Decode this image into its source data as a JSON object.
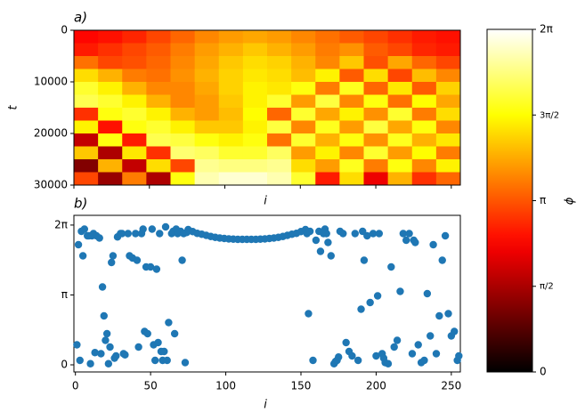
{
  "chart_data": [
    {
      "type": "heatmap",
      "title": "a)",
      "x_label": "i",
      "y_label": "t",
      "colormap": "hot",
      "xlim": [
        0,
        256
      ],
      "ylim": [
        30000,
        0
      ],
      "xticks": [
        0,
        50,
        100,
        150,
        200,
        250
      ],
      "yticks": [
        0,
        10000,
        20000,
        30000
      ],
      "z": [
        [
          2.4,
          2.5,
          2.7,
          3.0,
          3.3,
          3.6,
          3.8,
          3.9,
          3.8,
          3.6,
          3.4,
          3.2,
          3.0,
          2.8,
          2.6,
          2.5
        ],
        [
          2.6,
          2.8,
          3.0,
          3.2,
          3.5,
          3.8,
          4.0,
          4.2,
          4.0,
          3.8,
          3.5,
          3.7,
          3.2,
          3.0,
          2.7,
          2.6
        ],
        [
          3.4,
          3.0,
          3.1,
          3.3,
          3.6,
          3.9,
          4.2,
          4.4,
          4.3,
          4.0,
          3.6,
          4.2,
          3.1,
          3.9,
          3.3,
          3.0
        ],
        [
          4.4,
          4.0,
          3.5,
          3.4,
          3.7,
          4.0,
          4.3,
          4.5,
          4.4,
          4.1,
          4.6,
          3.2,
          4.4,
          3.0,
          4.1,
          3.6
        ],
        [
          5.0,
          4.6,
          4.0,
          3.6,
          3.6,
          3.9,
          4.3,
          4.6,
          4.5,
          4.8,
          3.5,
          4.9,
          3.3,
          4.5,
          3.2,
          4.3
        ],
        [
          5.2,
          5.0,
          4.6,
          4.0,
          3.6,
          3.8,
          4.2,
          4.6,
          5.0,
          3.8,
          5.1,
          3.6,
          4.8,
          3.4,
          4.7,
          3.9
        ],
        [
          2.8,
          4.8,
          5.0,
          4.6,
          4.0,
          3.8,
          4.1,
          4.7,
          3.3,
          5.0,
          3.9,
          4.6,
          3.7,
          5.0,
          3.5,
          4.4
        ],
        [
          4.6,
          2.5,
          4.8,
          5.0,
          4.6,
          4.2,
          4.2,
          4.6,
          5.1,
          3.6,
          4.9,
          3.8,
          5.1,
          3.9,
          4.8,
          3.6
        ],
        [
          1.8,
          4.8,
          2.6,
          5.2,
          5.1,
          4.8,
          4.6,
          4.8,
          3.4,
          5.0,
          4.0,
          4.8,
          3.7,
          4.9,
          4.0,
          4.5
        ],
        [
          4.2,
          1.6,
          4.5,
          2.8,
          5.4,
          5.3,
          5.0,
          5.0,
          5.3,
          3.8,
          4.6,
          3.6,
          5.0,
          3.8,
          4.7,
          3.5
        ],
        [
          1.2,
          4.0,
          1.8,
          4.4,
          3.0,
          5.6,
          5.5,
          5.5,
          5.6,
          4.4,
          3.8,
          4.9,
          3.5,
          4.8,
          3.6,
          4.6
        ],
        [
          3.0,
          1.4,
          3.5,
          1.6,
          4.8,
          5.8,
          6.0,
          6.0,
          5.8,
          5.0,
          2.6,
          4.4,
          2.2,
          4.0,
          2.8,
          3.3
        ]
      ],
      "colorbar": {
        "label": "ϕ",
        "lim": [
          0,
          6.28319
        ],
        "ticks": [
          0,
          {
            "value": 1.5708,
            "label": "π/2"
          },
          {
            "value": 3.14159,
            "label": "π"
          },
          {
            "value": 4.71239,
            "label": "3π/2"
          },
          {
            "value": 6.28319,
            "label": "2π"
          }
        ]
      }
    },
    {
      "type": "scatter",
      "title": "b)",
      "x_label": "i",
      "color": "#1f77b4",
      "xlim": [
        -1,
        256
      ],
      "ylim": [
        -0.32,
        6.72
      ],
      "xticks": [
        0,
        50,
        100,
        150,
        200,
        250
      ],
      "yticks": [
        0,
        {
          "value": 3.14159,
          "label": "π"
        },
        {
          "value": 6.28319,
          "label": "2π"
        }
      ],
      "x": [
        1,
        2,
        3,
        4,
        5,
        6,
        8,
        9,
        10,
        11,
        12,
        13,
        14,
        16,
        17,
        18,
        19,
        20,
        21,
        22,
        23,
        24,
        25,
        26,
        27,
        28,
        30,
        31,
        32,
        33,
        35,
        36,
        38,
        40,
        41,
        42,
        44,
        45,
        46,
        47,
        48,
        50,
        51,
        52,
        53,
        54,
        55,
        56,
        57,
        58,
        59,
        60,
        61,
        62,
        64,
        65,
        66,
        67,
        68,
        70,
        71,
        72,
        73,
        74,
        75,
        78,
        81,
        84,
        87,
        90,
        93,
        96,
        99,
        102,
        105,
        108,
        111,
        114,
        117,
        120,
        123,
        126,
        129,
        132,
        135,
        138,
        141,
        144,
        147,
        150,
        153,
        154,
        155,
        156,
        158,
        160,
        162,
        163,
        165,
        166,
        167,
        168,
        170,
        172,
        173,
        174,
        175,
        176,
        178,
        180,
        182,
        184,
        186,
        188,
        190,
        191,
        192,
        194,
        196,
        198,
        200,
        201,
        202,
        204,
        205,
        206,
        208,
        210,
        212,
        214,
        216,
        218,
        220,
        222,
        224,
        225,
        226,
        228,
        230,
        232,
        234,
        236,
        238,
        240,
        242,
        244,
        246,
        248,
        250,
        252,
        254,
        255
      ],
      "y": [
        0.9,
        5.4,
        0.2,
        6.0,
        4.9,
        6.1,
        5.8,
        5.8,
        0.05,
        5.8,
        5.9,
        0.55,
        5.8,
        5.7,
        0.5,
        3.5,
        2.2,
        1.1,
        1.4,
        0.05,
        0.8,
        4.6,
        4.9,
        0.3,
        0.4,
        5.75,
        5.9,
        5.9,
        0.5,
        0.45,
        5.9,
        4.9,
        4.8,
        5.9,
        4.7,
        0.8,
        5.9,
        6.1,
        1.5,
        4.4,
        1.4,
        4.4,
        6.1,
        0.9,
        0.2,
        4.3,
        1.0,
        5.9,
        0.6,
        0.2,
        0.6,
        6.2,
        0.2,
        1.9,
        5.9,
        6.0,
        1.4,
        6.1,
        5.9,
        6.0,
        4.7,
        5.9,
        0.1,
        5.95,
        6.08,
        5.99,
        5.91,
        5.87,
        5.82,
        5.77,
        5.73,
        5.7,
        5.68,
        5.66,
        5.65,
        5.64,
        5.64,
        5.64,
        5.64,
        5.64,
        5.65,
        5.66,
        5.68,
        5.7,
        5.73,
        5.77,
        5.82,
        5.87,
        5.91,
        5.99,
        6.08,
        5.9,
        2.3,
        6.0,
        0.2,
        5.6,
        6.0,
        5.1,
        5.9,
        6.1,
        5.9,
        5.5,
        4.9,
        0.05,
        0.15,
        0.2,
        0.35,
        6.0,
        5.9,
        1.0,
        0.6,
        0.4,
        5.9,
        0.2,
        2.5,
        6.0,
        4.7,
        5.8,
        2.8,
        5.9,
        0.4,
        3.1,
        5.9,
        0.5,
        0.3,
        0.1,
        0.05,
        4.4,
        0.8,
        1.1,
        3.3,
        5.9,
        5.6,
        5.9,
        0.5,
        5.6,
        5.5,
        0.9,
        0.1,
        0.2,
        3.2,
        1.3,
        5.4,
        0.5,
        2.2,
        4.7,
        5.8,
        2.3,
        1.3,
        1.5,
        0.2,
        0.4
      ]
    }
  ]
}
